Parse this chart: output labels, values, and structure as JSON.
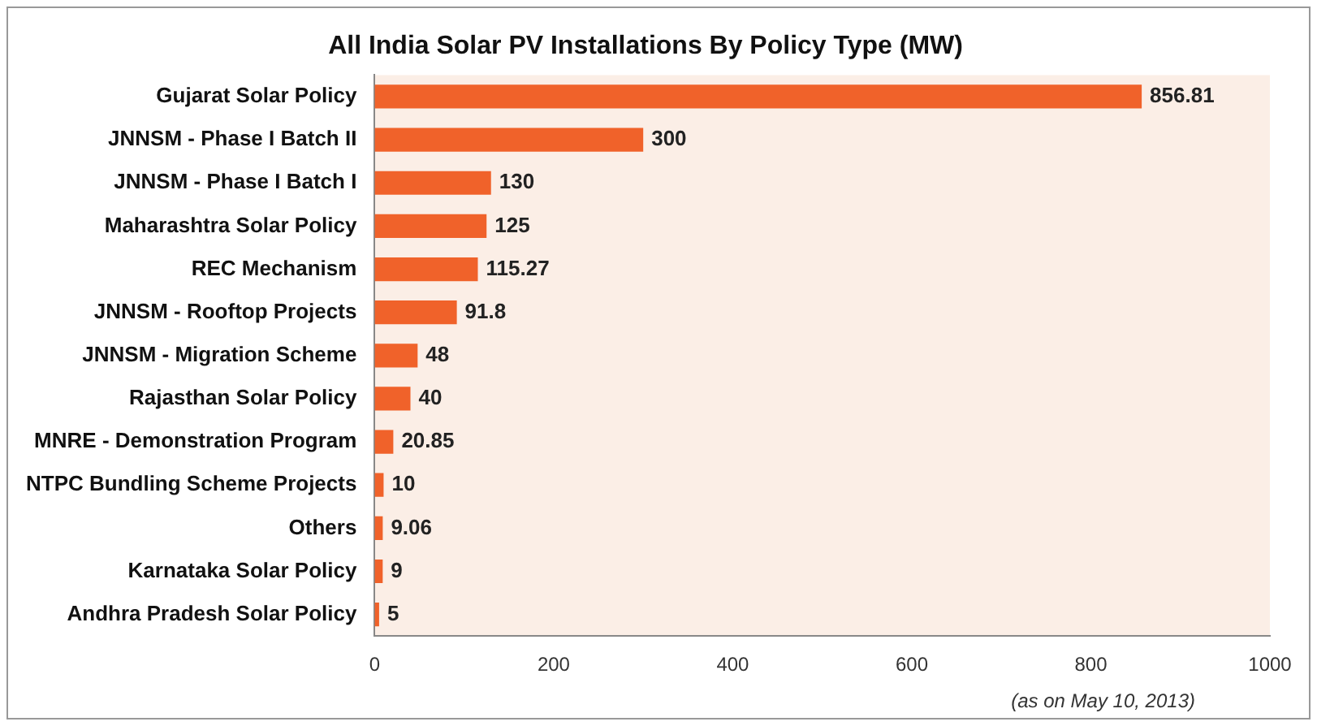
{
  "chart_data": {
    "type": "bar",
    "orientation": "horizontal",
    "title": "All India Solar PV Installations By Policy Type (MW)",
    "categories": [
      "Gujarat Solar Policy",
      "JNNSM - Phase I Batch II",
      "JNNSM - Phase I Batch I",
      "Maharashtra Solar Policy",
      "REC Mechanism",
      "JNNSM - Rooftop Projects",
      "JNNSM - Migration Scheme",
      "Rajasthan Solar Policy",
      "MNRE - Demonstration Program",
      "NTPC Bundling Scheme Projects",
      "Others",
      "Karnataka Solar Policy",
      "Andhra Pradesh Solar Policy"
    ],
    "values": [
      856.81,
      300,
      130,
      125,
      115.27,
      91.8,
      48,
      40,
      20.85,
      10,
      9.06,
      9,
      5
    ],
    "color": "#f0622a",
    "xlim": [
      0,
      1000
    ],
    "xticks": [
      0,
      200,
      400,
      600,
      800,
      1000
    ],
    "grid": false,
    "legend": false,
    "data_labels": true,
    "annotations": [
      "(as on May 10, 2013)"
    ]
  }
}
